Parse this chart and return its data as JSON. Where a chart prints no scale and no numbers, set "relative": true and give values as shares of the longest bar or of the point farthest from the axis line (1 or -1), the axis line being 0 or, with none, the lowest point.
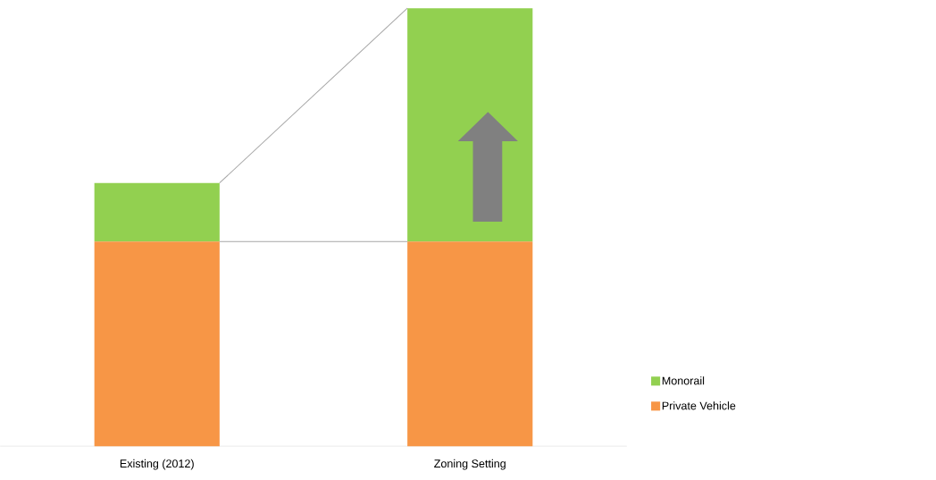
{
  "chart_data": {
    "type": "bar",
    "stacked": true,
    "relative": true,
    "legend": "bottom right",
    "categories": [
      "Existing (2012)",
      "Zoning Setting"
    ],
    "series": [
      {
        "name": "Private Vehicle",
        "color": "#f79646",
        "values": [
          0.467,
          0.467
        ]
      },
      {
        "name": "Monorail",
        "color": "#92d050",
        "values": [
          0.134,
          0.533
        ]
      }
    ]
  }
}
